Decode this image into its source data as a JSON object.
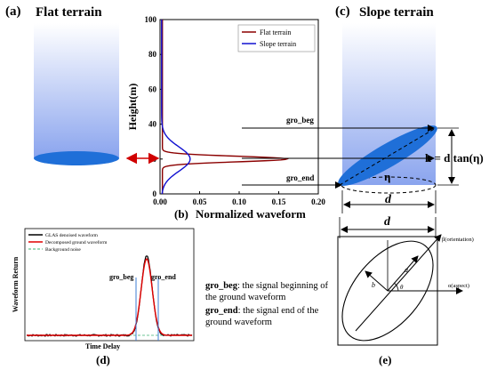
{
  "panel_a": {
    "label": "(a)",
    "title": "Flat terrain"
  },
  "panel_b": {
    "label": "(b)",
    "xlabel": "Normalized waveform",
    "ylabel": "Height(m)",
    "legend": [
      "Flat terrain",
      "Slope terrain"
    ]
  },
  "panel_c": {
    "label": "(c)",
    "title": "Slope terrain",
    "gro_beg": "gro_beg",
    "gro_end": "gro_end",
    "formula_lhs": "h = d tan(η)",
    "eta": "η",
    "d": "d"
  },
  "panel_d": {
    "label": "(d)",
    "ylabel": "Waveform Return",
    "xlabel": "Time Delay",
    "legend": [
      "GLAS denoised waveform",
      "Decomposed ground waveform",
      "Background noise"
    ],
    "gro_beg": "gro_beg",
    "gro_end": "gro_end"
  },
  "notes": {
    "beg_term": "gro_beg",
    "beg_text": ": the signal beginning of",
    "beg_text2": "the ground waveform",
    "end_term": "gro_end",
    "end_text": ": the signal end of the",
    "end_text2": "ground waveform"
  },
  "panel_e": {
    "label": "(e)",
    "d": "d",
    "beta": "β(orientation)",
    "alpha": "α(aspect)",
    "a": "a",
    "b": "b",
    "theta": "θ"
  },
  "colors": {
    "flat": "#8B0000",
    "slope": "#1010d0",
    "ellipse": "#1f6fd8"
  },
  "chart_data": {
    "type": "line",
    "xlabel": "Normalized waveform",
    "ylabel": "Height(m)",
    "xlim": [
      0,
      0.2
    ],
    "ylim": [
      0,
      100
    ],
    "xticks": [
      "0.00",
      "0.05",
      "0.10",
      "0.15",
      "0.20"
    ],
    "yticks": [
      "0",
      "20",
      "40",
      "60",
      "80",
      "100"
    ],
    "series": [
      {
        "name": "Flat terrain",
        "peak_x": 0.16,
        "peak_y": 20,
        "spread": 1.6,
        "base_x": 0.003
      },
      {
        "name": "Slope terrain",
        "peak_x": 0.038,
        "peak_y": 20,
        "spread": 7,
        "base_x": 0.002
      }
    ]
  }
}
